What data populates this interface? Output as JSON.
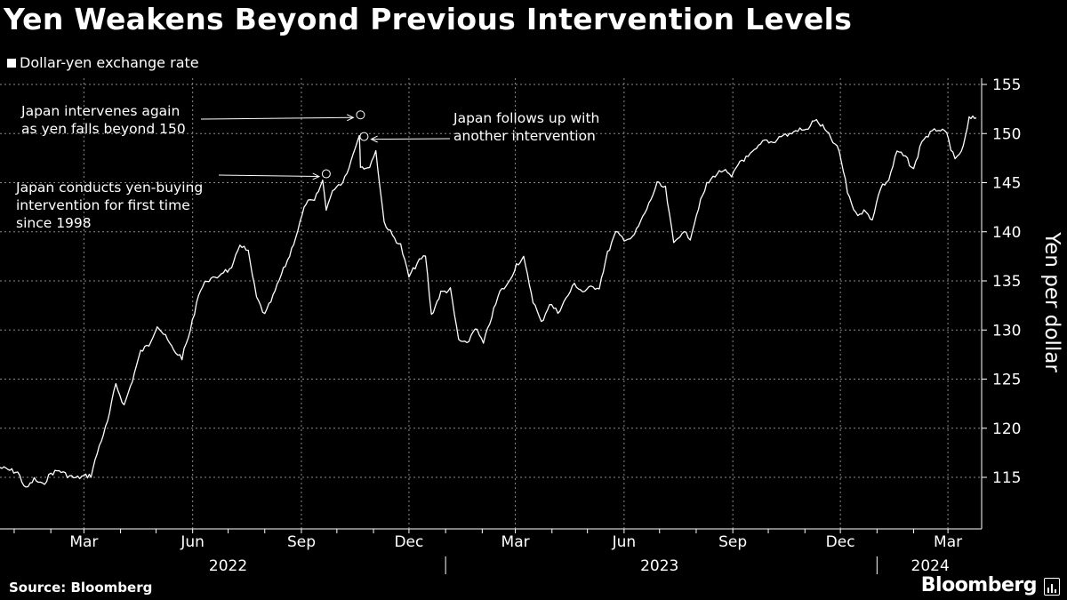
{
  "chart_data": {
    "type": "line",
    "title": "Yen Weakens Beyond Previous Intervention Levels",
    "legend": {
      "label": "Dollar-yen exchange rate",
      "placement": "top-left"
    },
    "ylabel": "Yen per dollar",
    "ylim": [
      110,
      157
    ],
    "y_ticks": [
      115,
      120,
      125,
      130,
      135,
      140,
      145,
      150,
      155
    ],
    "y_axis_side": "right",
    "grid": true,
    "x_month_labels": [
      "Mar",
      "Jun",
      "Sep",
      "Dec",
      "Mar",
      "Jun",
      "Sep",
      "Dec",
      "Mar"
    ],
    "x_year_labels": [
      "2022",
      "2023",
      "2024"
    ],
    "series": [
      {
        "name": "Dollar-yen exchange rate",
        "color": "#ffffff",
        "points": [
          [
            "2021-12-20",
            116.0
          ],
          [
            "2022-01-04",
            115.5
          ],
          [
            "2022-01-11",
            113.8
          ],
          [
            "2022-01-18",
            114.8
          ],
          [
            "2022-01-25",
            114.2
          ],
          [
            "2022-02-01",
            115.4
          ],
          [
            "2022-02-08",
            115.7
          ],
          [
            "2022-02-15",
            115.2
          ],
          [
            "2022-02-22",
            114.9
          ],
          [
            "2022-03-01",
            115.1
          ],
          [
            "2022-03-07",
            115.2
          ],
          [
            "2022-03-14",
            118.2
          ],
          [
            "2022-03-21",
            120.6
          ],
          [
            "2022-03-28",
            124.5
          ],
          [
            "2022-04-04",
            122.3
          ],
          [
            "2022-04-11",
            124.9
          ],
          [
            "2022-04-18",
            127.8
          ],
          [
            "2022-04-25",
            128.5
          ],
          [
            "2022-05-02",
            130.5
          ],
          [
            "2022-05-09",
            129.3
          ],
          [
            "2022-05-16",
            127.9
          ],
          [
            "2022-05-23",
            127.2
          ],
          [
            "2022-05-30",
            129.9
          ],
          [
            "2022-06-06",
            133.7
          ],
          [
            "2022-06-13",
            135.1
          ],
          [
            "2022-06-20",
            135.2
          ],
          [
            "2022-06-27",
            136.0
          ],
          [
            "2022-07-04",
            136.1
          ],
          [
            "2022-07-11",
            138.8
          ],
          [
            "2022-07-18",
            137.9
          ],
          [
            "2022-07-25",
            133.3
          ],
          [
            "2022-08-01",
            131.5
          ],
          [
            "2022-08-08",
            133.4
          ],
          [
            "2022-08-15",
            135.6
          ],
          [
            "2022-08-22",
            137.6
          ],
          [
            "2022-08-29",
            140.2
          ],
          [
            "2022-09-05",
            143.0
          ],
          [
            "2022-09-12",
            143.1
          ],
          [
            "2022-09-19",
            145.2
          ],
          [
            "2022-09-22",
            142.4
          ],
          [
            "2022-09-29",
            144.5
          ],
          [
            "2022-10-06",
            145.1
          ],
          [
            "2022-10-13",
            147.2
          ],
          [
            "2022-10-20",
            150.0
          ],
          [
            "2022-10-21",
            146.8
          ],
          [
            "2022-10-27",
            146.3
          ],
          [
            "2022-11-03",
            148.2
          ],
          [
            "2022-11-10",
            141.0
          ],
          [
            "2022-11-17",
            139.6
          ],
          [
            "2022-11-24",
            138.6
          ],
          [
            "2022-12-01",
            135.4
          ],
          [
            "2022-12-08",
            136.8
          ],
          [
            "2022-12-15",
            137.6
          ],
          [
            "2022-12-20",
            131.5
          ],
          [
            "2022-12-28",
            133.8
          ],
          [
            "2023-01-05",
            134.1
          ],
          [
            "2023-01-12",
            129.0
          ],
          [
            "2023-01-19",
            128.5
          ],
          [
            "2023-01-26",
            130.3
          ],
          [
            "2023-02-02",
            128.6
          ],
          [
            "2023-02-09",
            131.4
          ],
          [
            "2023-02-16",
            133.9
          ],
          [
            "2023-02-23",
            134.7
          ],
          [
            "2023-03-02",
            136.7
          ],
          [
            "2023-03-08",
            137.3
          ],
          [
            "2023-03-16",
            133.0
          ],
          [
            "2023-03-23",
            130.7
          ],
          [
            "2023-03-30",
            132.7
          ],
          [
            "2023-04-06",
            131.8
          ],
          [
            "2023-04-13",
            133.2
          ],
          [
            "2023-04-20",
            134.7
          ],
          [
            "2023-04-27",
            133.9
          ],
          [
            "2023-05-04",
            134.3
          ],
          [
            "2023-05-11",
            134.4
          ],
          [
            "2023-05-18",
            137.8
          ],
          [
            "2023-05-25",
            139.9
          ],
          [
            "2023-06-01",
            139.3
          ],
          [
            "2023-06-08",
            139.3
          ],
          [
            "2023-06-15",
            141.0
          ],
          [
            "2023-06-22",
            142.8
          ],
          [
            "2023-06-29",
            144.9
          ],
          [
            "2023-07-06",
            144.4
          ],
          [
            "2023-07-13",
            138.8
          ],
          [
            "2023-07-20",
            140.0
          ],
          [
            "2023-07-27",
            139.4
          ],
          [
            "2023-08-03",
            142.5
          ],
          [
            "2023-08-10",
            144.8
          ],
          [
            "2023-08-17",
            145.8
          ],
          [
            "2023-08-24",
            146.3
          ],
          [
            "2023-08-31",
            145.5
          ],
          [
            "2023-09-07",
            147.2
          ],
          [
            "2023-09-14",
            147.6
          ],
          [
            "2023-09-21",
            148.4
          ],
          [
            "2023-09-28",
            149.3
          ],
          [
            "2023-10-05",
            149.1
          ],
          [
            "2023-10-12",
            149.8
          ],
          [
            "2023-10-19",
            149.9
          ],
          [
            "2023-10-26",
            150.4
          ],
          [
            "2023-11-02",
            150.3
          ],
          [
            "2023-11-09",
            151.4
          ],
          [
            "2023-11-16",
            150.7
          ],
          [
            "2023-11-23",
            149.5
          ],
          [
            "2023-11-30",
            148.2
          ],
          [
            "2023-12-07",
            144.1
          ],
          [
            "2023-12-14",
            141.8
          ],
          [
            "2023-12-21",
            142.1
          ],
          [
            "2023-12-28",
            141.3
          ],
          [
            "2024-01-04",
            144.5
          ],
          [
            "2024-01-11",
            145.3
          ],
          [
            "2024-01-18",
            148.2
          ],
          [
            "2024-01-25",
            147.6
          ],
          [
            "2024-02-01",
            146.3
          ],
          [
            "2024-02-08",
            149.3
          ],
          [
            "2024-02-15",
            150.0
          ],
          [
            "2024-02-22",
            150.5
          ],
          [
            "2024-02-29",
            149.9
          ],
          [
            "2024-03-07",
            147.2
          ],
          [
            "2024-03-14",
            148.6
          ],
          [
            "2024-03-19",
            151.5
          ],
          [
            "2024-03-25",
            151.6
          ]
        ]
      }
    ],
    "annotations": [
      {
        "lines": [
          "Japan conducts yen-buying",
          "intervention for first time",
          "since 1998"
        ],
        "date": "2022-09-22",
        "value": 145.9
      },
      {
        "lines": [
          "Japan intervenes again",
          "as yen falls beyond 150"
        ],
        "date": "2022-10-21",
        "value": 151.9
      },
      {
        "lines": [
          "Japan follows up with",
          "another intervention"
        ],
        "date": "2022-10-24",
        "value": 149.7
      }
    ]
  },
  "footer": {
    "source": "Source: Bloomberg",
    "brand": "Bloomberg"
  }
}
